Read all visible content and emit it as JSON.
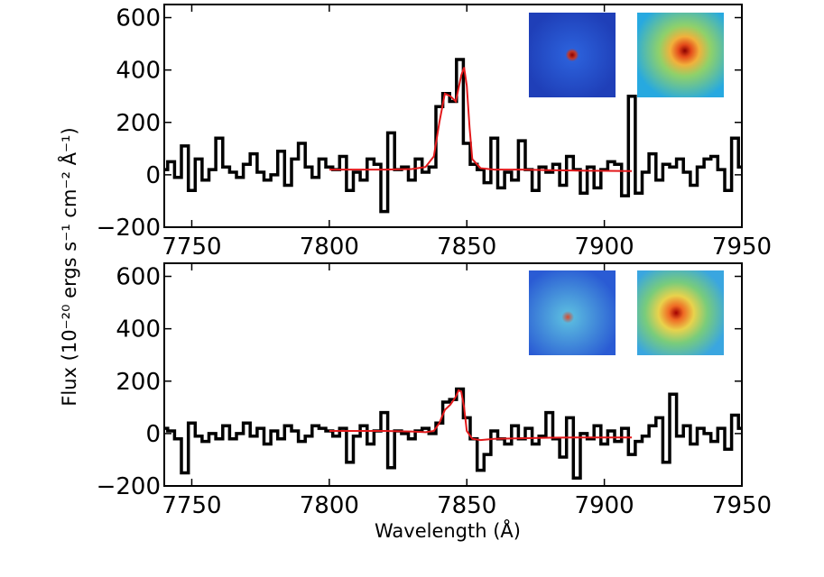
{
  "chart_data": [
    {
      "type": "line",
      "panel": "top",
      "xlim": [
        7740,
        7950
      ],
      "ylim": [
        -200,
        650
      ],
      "xticks": [
        7750,
        7800,
        7850,
        7900,
        7950
      ],
      "yticks": [
        -200,
        0,
        200,
        400,
        600
      ],
      "series": [
        {
          "name": "spectrum",
          "style": "black steps",
          "x": [
            7740,
            7742.5,
            7745,
            7747.5,
            7750,
            7752.5,
            7755,
            7757.5,
            7760,
            7762.5,
            7765,
            7767.5,
            7770,
            7772.5,
            7775,
            7777.5,
            7780,
            7782.5,
            7785,
            7787.5,
            7790,
            7792.5,
            7795,
            7797.5,
            7800,
            7802.5,
            7805,
            7807.5,
            7810,
            7812.5,
            7815,
            7817.5,
            7820,
            7822.5,
            7825,
            7827.5,
            7830,
            7832.5,
            7835,
            7837.5,
            7840,
            7842.5,
            7845,
            7847.5,
            7850,
            7852.5,
            7855,
            7857.5,
            7860,
            7862.5,
            7865,
            7867.5,
            7870,
            7872.5,
            7875,
            7877.5,
            7880,
            7882.5,
            7885,
            7887.5,
            7890,
            7892.5,
            7895,
            7897.5,
            7900,
            7902.5,
            7905,
            7907.5,
            7910,
            7912.5,
            7915,
            7917.5,
            7920,
            7922.5,
            7925,
            7927.5,
            7930,
            7932.5,
            7935,
            7937.5,
            7940,
            7942.5,
            7945,
            7947.5,
            7950
          ],
          "y": [
            20,
            50,
            -10,
            110,
            -60,
            60,
            -20,
            20,
            140,
            30,
            10,
            -10,
            40,
            80,
            10,
            -20,
            0,
            90,
            -40,
            60,
            120,
            30,
            -10,
            60,
            30,
            20,
            70,
            -60,
            10,
            -20,
            60,
            40,
            -140,
            160,
            20,
            30,
            -20,
            60,
            10,
            30,
            260,
            310,
            280,
            440,
            120,
            40,
            20,
            -30,
            140,
            -50,
            10,
            -20,
            130,
            20,
            -60,
            30,
            10,
            40,
            -40,
            70,
            20,
            -70,
            30,
            -50,
            20,
            50,
            40,
            -80,
            300,
            -70,
            10,
            80,
            -20,
            40,
            30,
            60,
            10,
            -40,
            30,
            60,
            70,
            20,
            -60,
            140,
            30
          ],
          "line_width": "thick"
        },
        {
          "name": "fit",
          "style": "red line",
          "x": [
            7800,
            7810,
            7820,
            7830,
            7835,
            7838,
            7840,
            7842,
            7844,
            7846,
            7848,
            7849,
            7850,
            7851,
            7852,
            7855,
            7860,
            7870,
            7880,
            7890,
            7900,
            7910
          ],
          "y": [
            20,
            20,
            20,
            22,
            30,
            70,
            200,
            310,
            300,
            280,
            380,
            410,
            340,
            180,
            60,
            25,
            20,
            20,
            18,
            16,
            15,
            14
          ]
        }
      ],
      "insets": [
        {
          "name": "cutout-1",
          "description": "blue map with compact red source at center"
        },
        {
          "name": "cutout-2",
          "description": "pixelated map with red source at center"
        }
      ]
    },
    {
      "type": "line",
      "panel": "bottom",
      "xlim": [
        7740,
        7950
      ],
      "ylim": [
        -200,
        650
      ],
      "xticks": [
        7750,
        7800,
        7850,
        7900,
        7950
      ],
      "yticks": [
        -200,
        0,
        200,
        400,
        600
      ],
      "xlabel": "Wavelength (Å)",
      "series": [
        {
          "name": "spectrum",
          "style": "black steps",
          "x": [
            7740,
            7742.5,
            7745,
            7747.5,
            7750,
            7752.5,
            7755,
            7757.5,
            7760,
            7762.5,
            7765,
            7767.5,
            7770,
            7772.5,
            7775,
            7777.5,
            7780,
            7782.5,
            7785,
            7787.5,
            7790,
            7792.5,
            7795,
            7797.5,
            7800,
            7802.5,
            7805,
            7807.5,
            7810,
            7812.5,
            7815,
            7817.5,
            7820,
            7822.5,
            7825,
            7827.5,
            7830,
            7832.5,
            7835,
            7837.5,
            7840,
            7842.5,
            7845,
            7847.5,
            7850,
            7852.5,
            7855,
            7857.5,
            7860,
            7862.5,
            7865,
            7867.5,
            7870,
            7872.5,
            7875,
            7877.5,
            7880,
            7882.5,
            7885,
            7887.5,
            7890,
            7892.5,
            7895,
            7897.5,
            7900,
            7902.5,
            7905,
            7907.5,
            7910,
            7912.5,
            7915,
            7917.5,
            7920,
            7922.5,
            7925,
            7927.5,
            7930,
            7932.5,
            7935,
            7937.5,
            7940,
            7942.5,
            7945,
            7947.5,
            7950
          ],
          "y": [
            20,
            10,
            -20,
            -150,
            40,
            -10,
            -30,
            0,
            -20,
            30,
            -20,
            0,
            40,
            -10,
            20,
            -40,
            10,
            -20,
            30,
            10,
            -30,
            -10,
            30,
            20,
            10,
            -10,
            20,
            -110,
            -10,
            30,
            -40,
            10,
            80,
            -130,
            10,
            0,
            -20,
            10,
            20,
            0,
            40,
            120,
            130,
            170,
            60,
            -20,
            -140,
            -80,
            10,
            -20,
            -40,
            30,
            -20,
            20,
            -40,
            -10,
            80,
            -20,
            -90,
            60,
            -170,
            0,
            -20,
            30,
            -40,
            10,
            -30,
            20,
            -80,
            -30,
            -10,
            30,
            60,
            -110,
            150,
            -10,
            30,
            -40,
            20,
            0,
            -30,
            20,
            -60,
            70,
            20
          ],
          "line_width": "thick"
        },
        {
          "name": "fit",
          "style": "red line",
          "x": [
            7800,
            7810,
            7820,
            7830,
            7835,
            7838,
            7840,
            7842,
            7844,
            7846,
            7847,
            7848,
            7849,
            7850,
            7852,
            7855,
            7860,
            7870,
            7880,
            7890,
            7900,
            7910
          ],
          "y": [
            10,
            10,
            10,
            8,
            5,
            10,
            40,
            90,
            110,
            140,
            165,
            160,
            100,
            10,
            -20,
            -25,
            -20,
            -18,
            -16,
            -15,
            -15,
            -15
          ]
        }
      ],
      "insets": [
        {
          "name": "cutout-3",
          "description": "noisy blue map with faint source"
        },
        {
          "name": "cutout-4",
          "description": "noisy pixelated map with red source at center"
        }
      ]
    }
  ],
  "shared": {
    "ylabel": "Flux (10⁻²⁰ ergs s⁻¹ cm⁻² Å⁻¹)"
  },
  "colors": {
    "spectrum": "#000000",
    "fit": "#e31a1c",
    "axes": "#000000"
  }
}
